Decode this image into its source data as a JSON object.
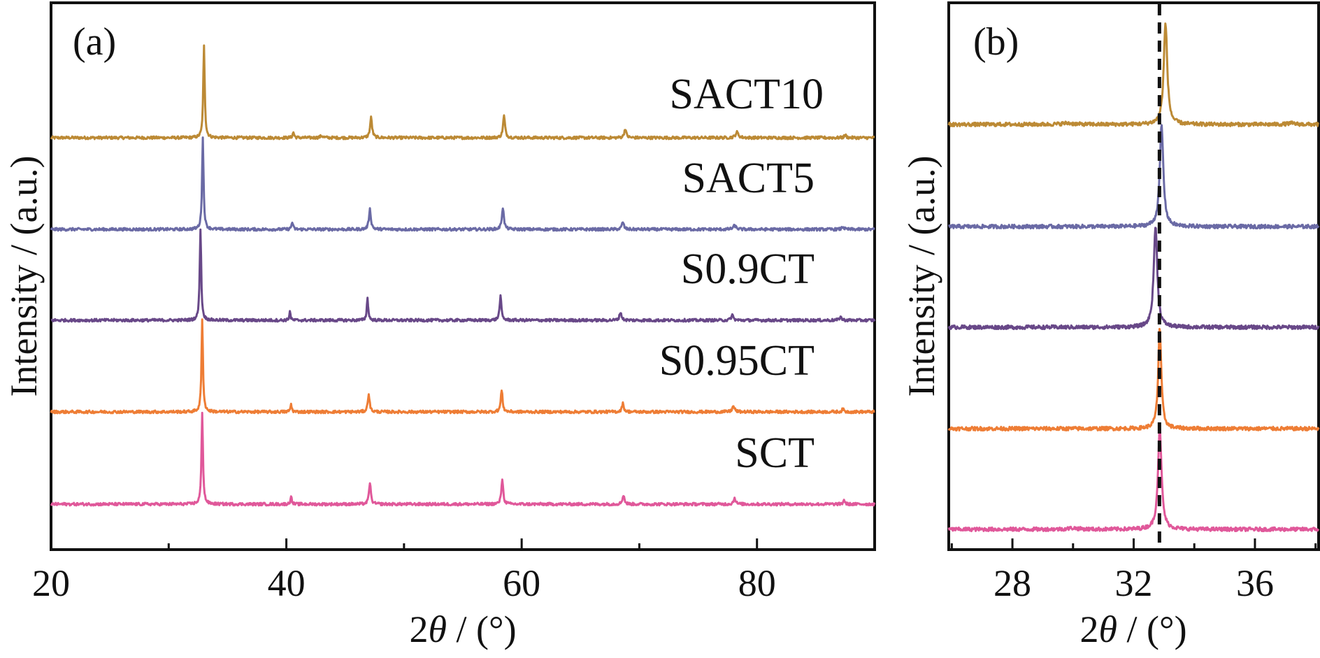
{
  "chart_data": [
    {
      "panel": "(a)",
      "type": "line",
      "title": "",
      "xlabel": "2θ / (°)",
      "xlabel_parts": {
        "prefix": "2",
        "theta": "θ",
        "suffix": " / (°)"
      },
      "ylabel": "Intensity / (a.u.)",
      "xlim": [
        20,
        90
      ],
      "xticks_major": [
        20,
        40,
        60,
        80
      ],
      "xticks_minor": [
        30,
        50,
        70
      ],
      "ylim_relative": [
        -0.5,
        5.0
      ],
      "stack_offset": 1.0,
      "grid": false,
      "legend": "inline labels right of each trace",
      "series": [
        {
          "name": "SACT10",
          "color": "#BC8A35",
          "offset": 4,
          "peaks": [
            [
              33.0,
              1.0,
              0.15
            ],
            [
              40.6,
              0.06,
              0.15
            ],
            [
              43.0,
              0.02,
              0.3
            ],
            [
              47.2,
              0.22,
              0.2
            ],
            [
              58.5,
              0.24,
              0.2
            ],
            [
              68.8,
              0.1,
              0.2
            ],
            [
              78.3,
              0.06,
              0.3
            ],
            [
              87.5,
              0.03,
              0.2
            ]
          ]
        },
        {
          "name": "SACT5",
          "color": "#6A6AA5",
          "offset": 3,
          "peaks": [
            [
              32.9,
              1.0,
              0.15
            ],
            [
              40.5,
              0.08,
              0.15
            ],
            [
              47.1,
              0.22,
              0.2
            ],
            [
              58.4,
              0.24,
              0.2
            ],
            [
              68.6,
              0.08,
              0.2
            ],
            [
              78.1,
              0.04,
              0.3
            ],
            [
              87.3,
              0.03,
              0.2
            ]
          ]
        },
        {
          "name": "S0.9CT",
          "color": "#684888",
          "offset": 2,
          "peaks": [
            [
              32.7,
              1.0,
              0.15
            ],
            [
              40.3,
              0.1,
              0.12
            ],
            [
              46.9,
              0.24,
              0.15
            ],
            [
              58.2,
              0.26,
              0.18
            ],
            [
              68.4,
              0.09,
              0.2
            ],
            [
              77.9,
              0.06,
              0.2
            ],
            [
              87.1,
              0.04,
              0.2
            ]
          ]
        },
        {
          "name": "S0.95CT",
          "color": "#EE7D35",
          "offset": 1,
          "peaks": [
            [
              32.85,
              1.0,
              0.15
            ],
            [
              40.4,
              0.08,
              0.15
            ],
            [
              47.0,
              0.2,
              0.18
            ],
            [
              58.3,
              0.24,
              0.18
            ],
            [
              68.6,
              0.09,
              0.2
            ],
            [
              78.0,
              0.06,
              0.25
            ],
            [
              87.3,
              0.03,
              0.2
            ]
          ]
        },
        {
          "name": "SCT",
          "color": "#E0589A",
          "offset": 0,
          "peaks": [
            [
              32.85,
              1.0,
              0.15
            ],
            [
              40.4,
              0.1,
              0.12
            ],
            [
              47.1,
              0.24,
              0.18
            ],
            [
              58.35,
              0.28,
              0.18
            ],
            [
              68.65,
              0.1,
              0.2
            ],
            [
              78.1,
              0.07,
              0.2
            ],
            [
              87.4,
              0.05,
              0.15
            ]
          ]
        }
      ]
    },
    {
      "panel": "(b)",
      "type": "line",
      "title": "",
      "xlabel": "2θ / (°)",
      "xlabel_parts": {
        "prefix": "2",
        "theta": "θ",
        "suffix": " / (°)"
      },
      "ylabel": "Intensity / (a.u.)",
      "xlim": [
        25.9,
        38.1
      ],
      "xticks_major": [
        28,
        32,
        36
      ],
      "xticks_minor": [
        26,
        30,
        34,
        38
      ],
      "reference_line": {
        "x": 32.85,
        "style": "dashed",
        "color": "#111111"
      },
      "stack_offset": 1.0,
      "grid": false,
      "series": [
        {
          "name": "SACT10",
          "color": "#BC8A35",
          "offset": 4,
          "peaks": [
            [
              33.05,
              0.82,
              0.14
            ],
            [
              29.8,
              0.01,
              0.5
            ],
            [
              37.2,
              0.01,
              0.3
            ]
          ]
        },
        {
          "name": "SACT5",
          "color": "#6A6AA5",
          "offset": 3,
          "peaks": [
            [
              32.92,
              0.82,
              0.14
            ]
          ]
        },
        {
          "name": "S0.9CT",
          "color": "#684888",
          "offset": 2,
          "peaks": [
            [
              32.72,
              0.82,
              0.14
            ]
          ]
        },
        {
          "name": "S0.95CT",
          "color": "#EE7D35",
          "offset": 1,
          "peaks": [
            [
              32.86,
              0.82,
              0.12
            ]
          ]
        },
        {
          "name": "SCT",
          "color": "#E0589A",
          "offset": 0,
          "peaks": [
            [
              32.86,
              0.82,
              0.14
            ],
            [
              30.0,
              0.01,
              0.4
            ]
          ]
        }
      ]
    }
  ],
  "labels": {
    "panel_a": "(a)",
    "panel_b": "(b)",
    "ylabel": "Intensity / (a.u.)",
    "x_prefix": "2",
    "x_theta": "θ",
    "x_suffix": " / (°)"
  }
}
